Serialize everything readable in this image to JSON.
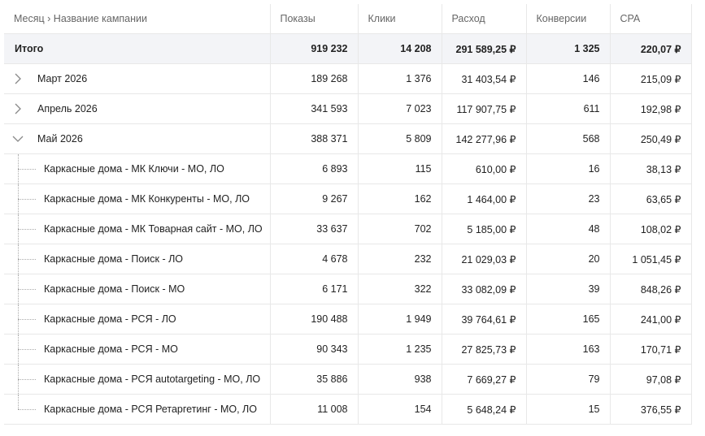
{
  "header": {
    "columns": [
      "Месяц › Название кампании",
      "Показы",
      "Клики",
      "Расход",
      "Конверсии",
      "CPA"
    ]
  },
  "table": {
    "total": {
      "label": "Итого",
      "cells": [
        "919 232",
        "14 208",
        "291 589,25 ₽",
        "1 325",
        "220,07 ₽"
      ]
    },
    "months": [
      {
        "label": "Март 2026",
        "cells": [
          "189 268",
          "1 376",
          "31 403,54 ₽",
          "146",
          "215,09 ₽"
        ],
        "campaigns": []
      },
      {
        "label": "Апрель 2026",
        "cells": [
          "341 593",
          "7 023",
          "117 907,75 ₽",
          "611",
          "192,98 ₽"
        ],
        "campaigns": []
      },
      {
        "label": "Май 2026",
        "cells": [
          "388 371",
          "5 809",
          "142 277,96 ₽",
          "568",
          "250,49 ₽"
        ],
        "campaigns": [
          {
            "label": "Каркасные дома - МК Ключи - МО, ЛО",
            "cells": [
              "6 893",
              "115",
              "610,00 ₽",
              "16",
              "38,13 ₽"
            ]
          },
          {
            "label": "Каркасные дома - МК Конкуренты - МО, ЛО",
            "cells": [
              "9 267",
              "162",
              "1 464,00 ₽",
              "23",
              "63,65 ₽"
            ]
          },
          {
            "label": "Каркасные дома - МК Товарная сайт - МО, ЛО",
            "cells": [
              "33 637",
              "702",
              "5 185,00 ₽",
              "48",
              "108,02 ₽"
            ]
          },
          {
            "label": "Каркасные дома - Поиск - ЛО",
            "cells": [
              "4 678",
              "232",
              "21 029,03 ₽",
              "20",
              "1 051,45 ₽"
            ]
          },
          {
            "label": "Каркасные дома - Поиск - МО",
            "cells": [
              "6 171",
              "322",
              "33 082,09 ₽",
              "39",
              "848,26 ₽"
            ]
          },
          {
            "label": "Каркасные дома - РСЯ - ЛО",
            "cells": [
              "190 488",
              "1 949",
              "39 764,61 ₽",
              "165",
              "241,00 ₽"
            ]
          },
          {
            "label": "Каркасные дома - РСЯ - МО",
            "cells": [
              "90 343",
              "1 235",
              "27 825,73 ₽",
              "163",
              "170,71 ₽"
            ]
          },
          {
            "label": "Каркасные дома - РСЯ autotargeting - МО, ЛО",
            "cells": [
              "35 886",
              "938",
              "7 669,27 ₽",
              "79",
              "97,08 ₽"
            ]
          },
          {
            "label": "Каркасные дома - РСЯ Ретаргетинг - МО, ЛО",
            "cells": [
              "11 008",
              "154",
              "5 648,24 ₽",
              "15",
              "376,55 ₽"
            ]
          }
        ]
      }
    ]
  }
}
